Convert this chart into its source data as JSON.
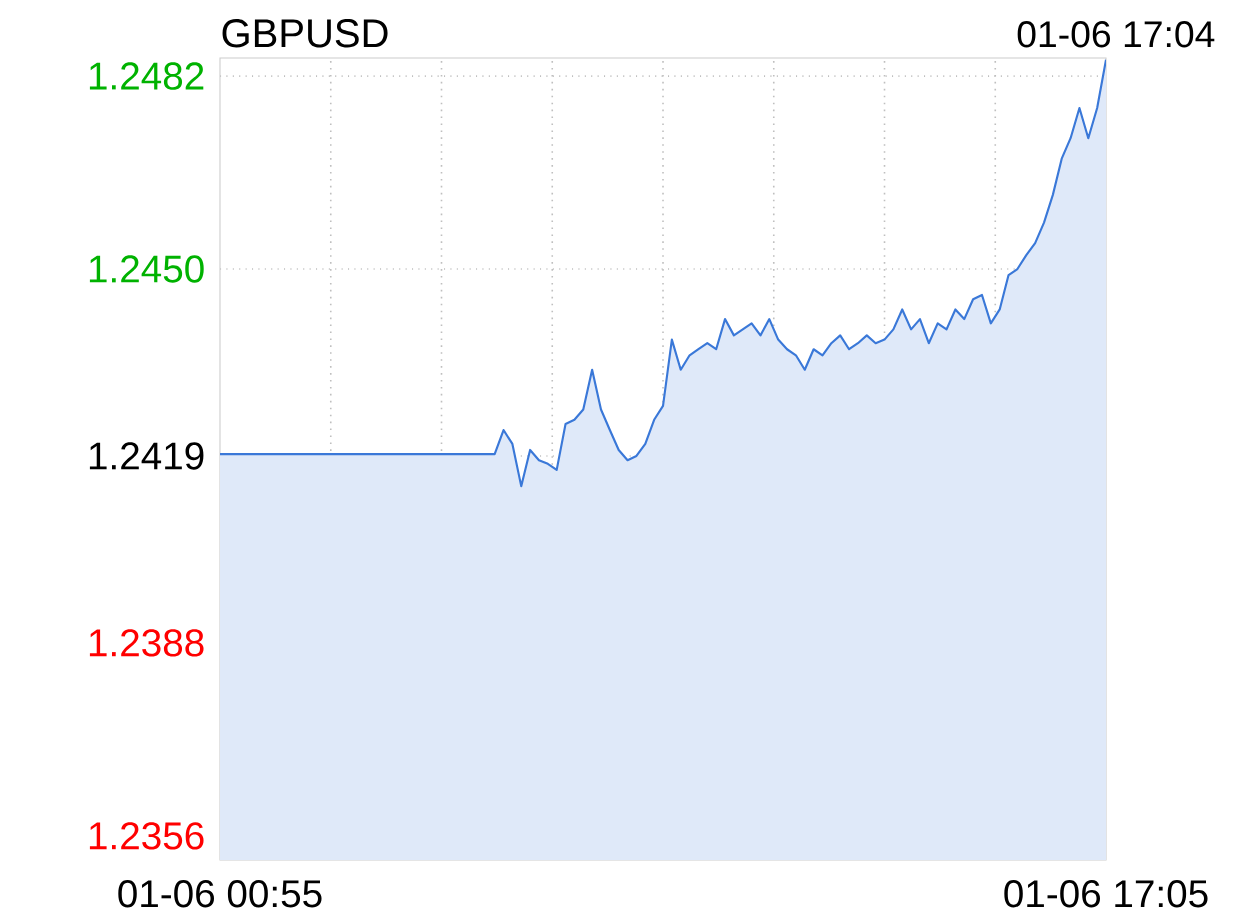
{
  "chart_data": {
    "type": "area",
    "title": "GBPUSD",
    "annotations": [
      "01-06 17:04"
    ],
    "categories": [
      "01-06 00:55",
      null,
      null,
      null,
      null,
      null,
      null,
      null,
      null,
      null,
      null,
      null,
      null,
      null,
      null,
      null,
      null,
      null,
      null,
      null,
      null,
      null,
      null,
      null,
      null,
      null,
      null,
      null,
      null,
      null,
      null,
      null,
      null,
      null,
      null,
      null,
      null,
      null,
      null,
      null,
      null,
      null,
      null,
      null,
      null,
      null,
      null,
      null,
      null,
      null,
      null,
      null,
      null,
      null,
      null,
      null,
      null,
      null,
      null,
      null,
      null,
      null,
      null,
      null,
      null,
      null,
      null,
      null,
      null,
      null,
      null,
      null,
      null,
      null,
      null,
      null,
      null,
      null,
      null,
      null,
      null,
      null,
      null,
      null,
      null,
      null,
      null,
      null,
      null,
      null,
      null,
      null,
      null,
      null,
      null,
      null,
      null,
      null,
      null,
      null,
      "01-06 17:05"
    ],
    "ylim": [
      1.2352,
      1.2485
    ],
    "yticks": [
      1.2356,
      1.2388,
      1.2419,
      {
        "value": 1.245,
        "label": "1.2450"
      },
      1.2482
    ],
    "grid": true,
    "series": [
      {
        "color": "#3a78d8",
        "values": [
          1.24193,
          1.24193,
          1.24193,
          1.24193,
          1.24193,
          1.24193,
          1.24193,
          1.24193,
          1.24193,
          1.24193,
          1.24193,
          1.24193,
          1.24193,
          1.24193,
          1.24193,
          1.24193,
          1.24193,
          1.24193,
          1.24193,
          1.24193,
          1.24193,
          1.24193,
          1.24193,
          1.24193,
          1.24193,
          1.24193,
          1.24193,
          1.24193,
          1.24193,
          1.24193,
          1.24193,
          1.24193,
          1.24233,
          1.2421,
          1.2414,
          1.242,
          1.24183,
          1.24177,
          1.24167,
          1.24243,
          1.2425,
          1.24267,
          1.24333,
          1.24267,
          1.24233,
          1.242,
          1.24183,
          1.2419,
          1.2421,
          1.2425,
          1.24273,
          1.24383,
          1.24333,
          1.24357,
          1.24367,
          1.24377,
          1.24367,
          1.24417,
          1.2439,
          1.244,
          1.2441,
          1.2439,
          1.24417,
          1.24383,
          1.24367,
          1.24357,
          1.24333,
          1.24367,
          1.24357,
          1.24377,
          1.2439,
          1.24367,
          1.24377,
          1.2439,
          1.24377,
          1.24383,
          1.244,
          1.24433,
          1.244,
          1.24417,
          1.24377,
          1.2441,
          1.244,
          1.24433,
          1.24417,
          1.2445,
          1.24457,
          1.2441,
          1.24433,
          1.2449,
          1.245,
          1.24523,
          1.24543,
          1.24577,
          1.24623,
          1.24683,
          1.24717,
          1.24767,
          1.24717,
          1.24767,
          1.24847
        ]
      }
    ]
  }
}
